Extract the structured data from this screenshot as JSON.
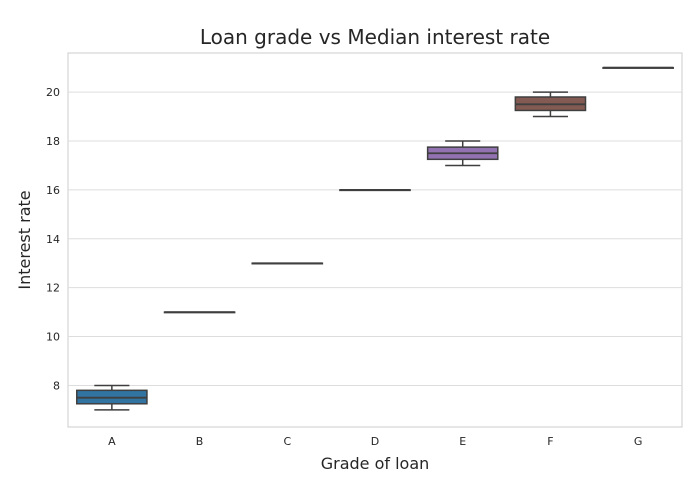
{
  "chart_data": {
    "type": "box",
    "title": "Loan grade vs Median interest rate",
    "xlabel": "Grade of loan",
    "ylabel": "Interest rate",
    "ylim": [
      6.3,
      21.6
    ],
    "yticks": [
      8,
      10,
      12,
      14,
      16,
      18,
      20
    ],
    "grid": true,
    "categories": [
      "A",
      "B",
      "C",
      "D",
      "E",
      "F",
      "G"
    ],
    "boxes": [
      {
        "category": "A",
        "whisker_low": 7.0,
        "q1": 7.25,
        "median": 7.5,
        "q3": 7.8,
        "whisker_high": 8.0,
        "color": "#3274a1"
      },
      {
        "category": "B",
        "whisker_low": 11.0,
        "q1": 11.0,
        "median": 11.0,
        "q3": 11.0,
        "whisker_high": 11.0,
        "color": "#e1812c"
      },
      {
        "category": "C",
        "whisker_low": 13.0,
        "q1": 13.0,
        "median": 13.0,
        "q3": 13.0,
        "whisker_high": 13.0,
        "color": "#3a923a"
      },
      {
        "category": "D",
        "whisker_low": 16.0,
        "q1": 16.0,
        "median": 16.0,
        "q3": 16.0,
        "whisker_high": 16.0,
        "color": "#c03d3e"
      },
      {
        "category": "E",
        "whisker_low": 17.0,
        "q1": 17.25,
        "median": 17.5,
        "q3": 17.75,
        "whisker_high": 18.0,
        "color": "#9372b2"
      },
      {
        "category": "F",
        "whisker_low": 19.0,
        "q1": 19.25,
        "median": 19.5,
        "q3": 19.8,
        "whisker_high": 20.0,
        "color": "#845b53"
      },
      {
        "category": "G",
        "whisker_low": 21.0,
        "q1": 21.0,
        "median": 21.0,
        "q3": 21.0,
        "whisker_high": 21.0,
        "color": "#d684bd"
      }
    ]
  }
}
